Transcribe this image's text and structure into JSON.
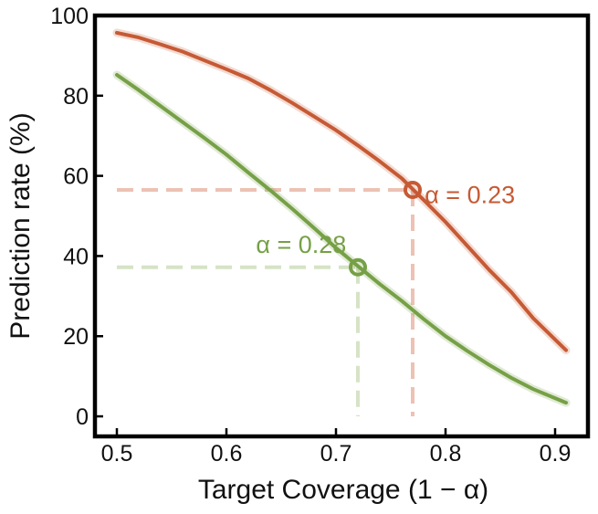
{
  "chart_data": {
    "type": "line",
    "xlabel": "Target Coverage (1 − α)",
    "ylabel": "Prediction rate (%)",
    "xlim": [
      0.48,
      0.93
    ],
    "ylim": [
      -5,
      100
    ],
    "xticks": [
      0.5,
      0.6,
      0.7,
      0.8,
      0.9
    ],
    "xtick_labels": [
      "0.5",
      "0.6",
      "0.7",
      "0.8",
      "0.9"
    ],
    "yticks": [
      0,
      20,
      40,
      60,
      80,
      100
    ],
    "ytick_labels": [
      "0",
      "20",
      "40",
      "60",
      "80",
      "100"
    ],
    "grid": false,
    "series": [
      {
        "color": "#c65a34",
        "guide_color": "#ecc2b4",
        "x": [
          0.5,
          0.52,
          0.54,
          0.56,
          0.58,
          0.6,
          0.62,
          0.64,
          0.66,
          0.68,
          0.7,
          0.72,
          0.74,
          0.76,
          0.78,
          0.8,
          0.82,
          0.84,
          0.86,
          0.88,
          0.91
        ],
        "y": [
          95.7,
          94.5,
          92.8,
          91.0,
          88.8,
          86.6,
          84.3,
          81.4,
          78.2,
          74.8,
          71.4,
          67.6,
          63.6,
          59.4,
          54.0,
          48.5,
          42.5,
          36.5,
          31.0,
          24.5,
          16.5
        ]
      },
      {
        "color": "#76a046",
        "guide_color": "#d6e3c5",
        "x": [
          0.5,
          0.52,
          0.54,
          0.56,
          0.58,
          0.6,
          0.62,
          0.64,
          0.66,
          0.68,
          0.7,
          0.72,
          0.74,
          0.76,
          0.78,
          0.8,
          0.82,
          0.84,
          0.86,
          0.88,
          0.91
        ],
        "y": [
          85.2,
          81.4,
          77.4,
          73.4,
          69.4,
          65.3,
          60.8,
          56.4,
          51.8,
          47.0,
          42.0,
          37.5,
          33.0,
          28.8,
          24.3,
          20.0,
          16.3,
          12.8,
          9.6,
          6.8,
          3.4
        ]
      }
    ],
    "annotations": [
      {
        "series": 0,
        "x": 0.77,
        "y": 56.5,
        "label": "α = 0.23",
        "label_x": 0.781,
        "label_y": 53.2
      },
      {
        "series": 1,
        "x": 0.72,
        "y": 37.2,
        "label": "α = 0.28",
        "label_x": 0.627,
        "label_y": 40.8
      }
    ]
  }
}
